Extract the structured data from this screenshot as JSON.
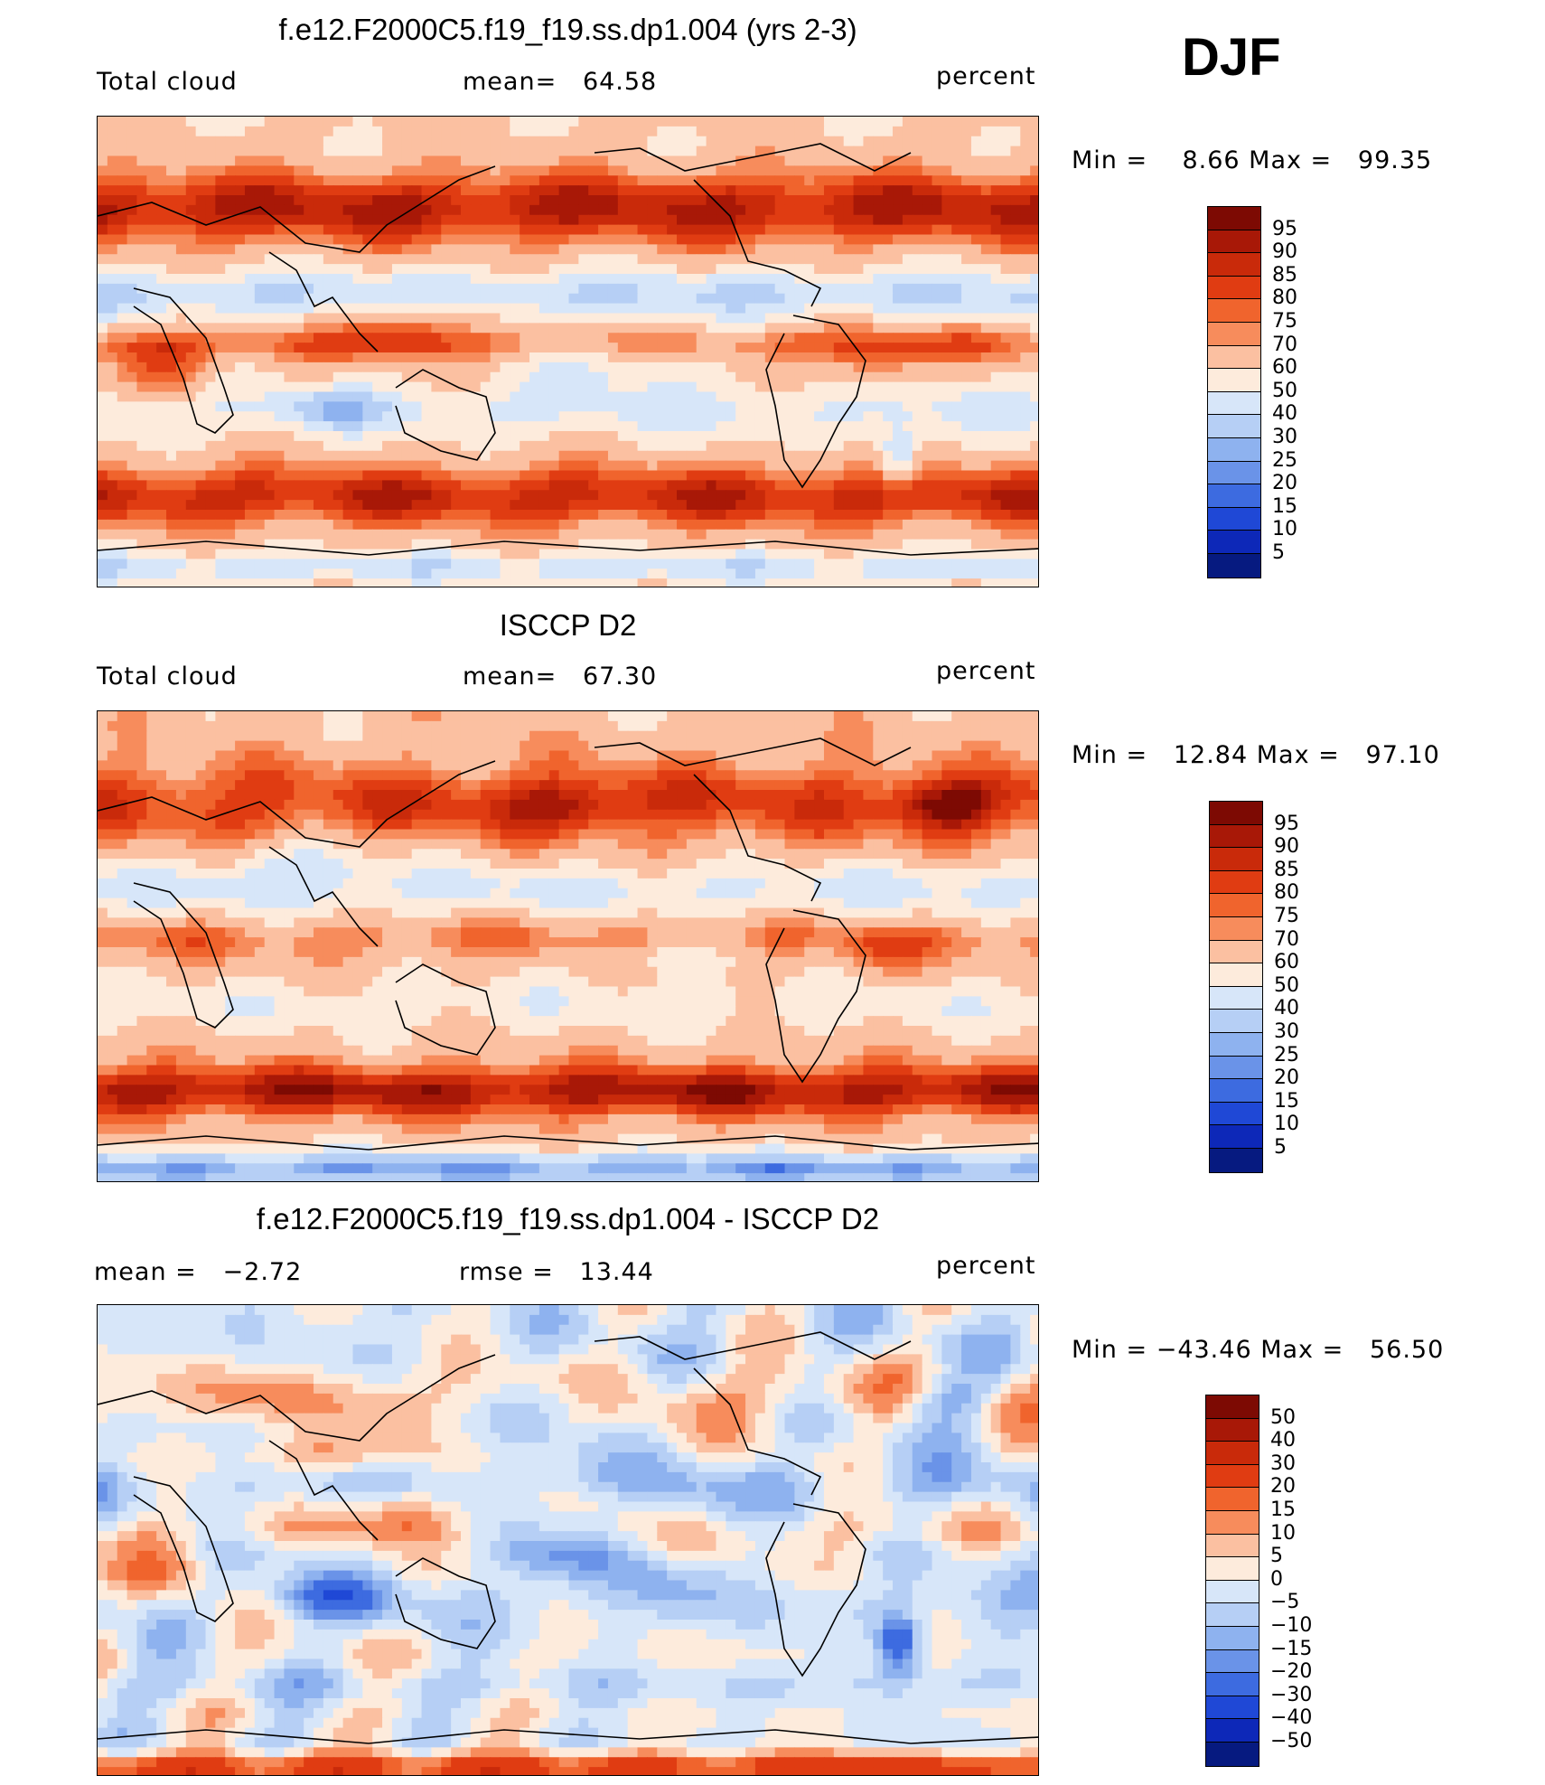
{
  "season": "DJF",
  "panels": [
    {
      "title": "f.e12.F2000C5.f19_f19.ss.dp1.004 (yrs 2-3)",
      "left_label": "Total cloud",
      "center_label": "mean=   64.58",
      "units": "percent",
      "minmax": "Min =    8.66 Max =   99.35"
    },
    {
      "title": "ISCCP D2",
      "left_label": "Total cloud",
      "center_label": "mean=   67.30",
      "units": "percent",
      "minmax": "Min =   12.84 Max =   97.10"
    },
    {
      "title": "f.e12.F2000C5.f19_f19.ss.dp1.004 - ISCCP D2",
      "left_label": "mean =   −2.72",
      "center_label": "rmse =   13.44",
      "units": "percent",
      "minmax": "Min = −43.46 Max =   56.50"
    }
  ],
  "chart_data": [
    {
      "type": "heatmap",
      "title": "f.e12.F2000C5.f19_f19.ss.dp1.004 (yrs 2-3)",
      "variable": "Total cloud",
      "units": "percent",
      "mean": 64.58,
      "min": 8.66,
      "max": 99.35,
      "colorbar_levels": [
        95,
        90,
        85,
        80,
        75,
        70,
        60,
        50,
        40,
        30,
        25,
        20,
        15,
        10,
        5
      ]
    },
    {
      "type": "heatmap",
      "title": "ISCCP D2",
      "variable": "Total cloud",
      "units": "percent",
      "mean": 67.3,
      "min": 12.84,
      "max": 97.1,
      "colorbar_levels": [
        95,
        90,
        85,
        80,
        75,
        70,
        60,
        50,
        40,
        30,
        25,
        20,
        15,
        10,
        5
      ]
    },
    {
      "type": "heatmap",
      "title": "f.e12.F2000C5.f19_f19.ss.dp1.004 - ISCCP D2",
      "units": "percent",
      "mean": -2.72,
      "rmse": 13.44,
      "min": -43.46,
      "max": 56.5,
      "colorbar_levels": [
        50,
        40,
        30,
        20,
        15,
        10,
        5,
        0,
        -5,
        -10,
        -15,
        -20,
        -30,
        -40,
        -50
      ]
    }
  ],
  "colorbar_ticks": {
    "absolute": [
      "95",
      "90",
      "85",
      "80",
      "75",
      "70",
      "60",
      "50",
      "40",
      "30",
      "25",
      "20",
      "15",
      "10",
      "5"
    ],
    "difference": [
      "50",
      "40",
      "30",
      "20",
      "15",
      "10",
      "5",
      "0",
      "−5",
      "−10",
      "−15",
      "−20",
      "−30",
      "−40",
      "−50"
    ]
  },
  "colors": {
    "palette": [
      "#7d0a03",
      "#a81807",
      "#c92a0a",
      "#e03c12",
      "#f0642d",
      "#f78c5c",
      "#fbc0a1",
      "#fdebdc",
      "#d7e6f9",
      "#b6cff5",
      "#8eb2ef",
      "#6a93e8",
      "#3d6be0",
      "#1f48d6",
      "#0d28b8",
      "#061a80"
    ]
  }
}
